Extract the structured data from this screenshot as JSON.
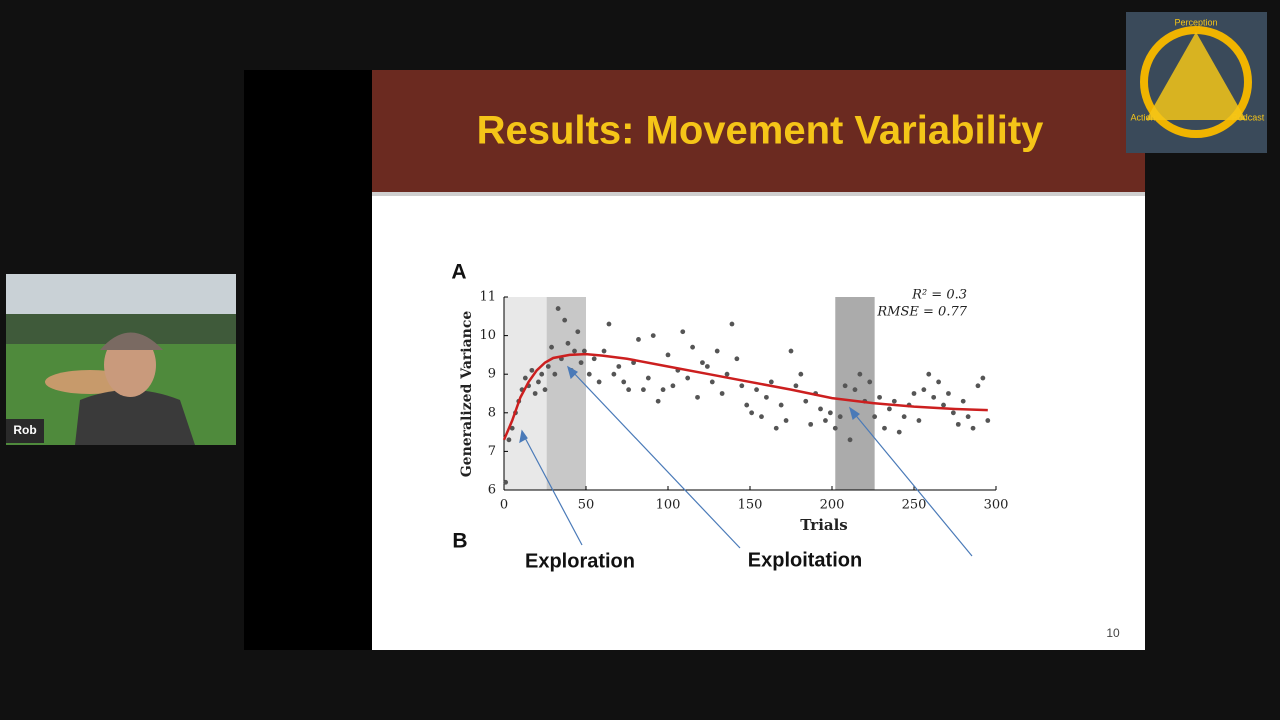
{
  "participant": {
    "name": "Rob"
  },
  "logo": {
    "top": "Perception",
    "left": "Action",
    "right": "Podcast"
  },
  "slide": {
    "title": "Results: Movement Variability",
    "page_number": "10"
  },
  "chart_data": {
    "type": "scatter",
    "xlabel": "Trials",
    "ylabel": "Generalized Variance",
    "annotations": [
      "R² = 0.3",
      "RMSE = 0.77"
    ],
    "labels": {
      "panel_a": "A",
      "panel_b": "B",
      "exploration": "Exploration",
      "exploitation": "Exploitation"
    },
    "xlim": [
      0,
      300
    ],
    "xticks": [
      0,
      50,
      100,
      150,
      200,
      250,
      300
    ],
    "ylim": [
      6,
      11
    ],
    "yticks": [
      6,
      7,
      8,
      9,
      10,
      11
    ],
    "color": "#555555",
    "bands": [
      {
        "x": [
          0,
          26
        ],
        "color": "#e8e8e8"
      },
      {
        "x": [
          26,
          50
        ],
        "color": "#c8c8c8"
      },
      {
        "x": [
          202,
          226
        ],
        "color": "#ababab"
      }
    ],
    "x": [
      1,
      3,
      5,
      7,
      9,
      11,
      13,
      15,
      17,
      19,
      21,
      23,
      25,
      27,
      29,
      31,
      33,
      35,
      37,
      39,
      41,
      43,
      45,
      47,
      49,
      52,
      55,
      58,
      61,
      64,
      67,
      70,
      73,
      76,
      79,
      82,
      85,
      88,
      91,
      94,
      97,
      100,
      103,
      106,
      109,
      112,
      115,
      118,
      121,
      124,
      127,
      130,
      133,
      136,
      139,
      142,
      145,
      148,
      151,
      154,
      157,
      160,
      163,
      166,
      169,
      172,
      175,
      178,
      181,
      184,
      187,
      190,
      193,
      196,
      199,
      202,
      205,
      208,
      211,
      214,
      217,
      220,
      223,
      226,
      229,
      232,
      235,
      238,
      241,
      244,
      247,
      250,
      253,
      256,
      259,
      262,
      265,
      268,
      271,
      274,
      277,
      280,
      283,
      286,
      289,
      292,
      295
    ],
    "values": [
      6.2,
      7.3,
      7.6,
      8.0,
      8.3,
      8.6,
      8.9,
      8.7,
      9.1,
      8.5,
      8.8,
      9.0,
      8.6,
      9.2,
      9.7,
      9.0,
      10.7,
      9.4,
      10.4,
      9.8,
      9.1,
      9.6,
      10.1,
      9.3,
      9.6,
      9.0,
      9.4,
      8.8,
      9.6,
      10.3,
      9.0,
      9.2,
      8.8,
      8.6,
      9.3,
      9.9,
      8.6,
      8.9,
      10.0,
      8.3,
      8.6,
      9.5,
      8.7,
      9.1,
      10.1,
      8.9,
      9.7,
      8.4,
      9.3,
      9.2,
      8.8,
      9.6,
      8.5,
      9.0,
      10.3,
      9.4,
      8.7,
      8.2,
      8.0,
      8.6,
      7.9,
      8.4,
      8.8,
      7.6,
      8.2,
      7.8,
      9.6,
      8.7,
      9.0,
      8.3,
      7.7,
      8.5,
      8.1,
      7.8,
      8.0,
      7.6,
      7.9,
      8.7,
      7.3,
      8.6,
      9.0,
      8.3,
      8.8,
      7.9,
      8.4,
      7.6,
      8.1,
      8.3,
      7.5,
      7.9,
      8.2,
      8.5,
      7.8,
      8.6,
      9.0,
      8.4,
      8.8,
      8.2,
      8.5,
      8.0,
      7.7,
      8.3,
      7.9,
      7.6,
      8.7,
      8.9,
      7.8
    ],
    "fit": {
      "color": "#cc1f1f",
      "x": [
        0,
        5,
        10,
        15,
        20,
        25,
        30,
        40,
        50,
        60,
        75,
        100,
        125,
        150,
        175,
        200,
        225,
        250,
        275,
        295
      ],
      "values": [
        7.3,
        7.8,
        8.4,
        8.8,
        9.1,
        9.3,
        9.42,
        9.5,
        9.52,
        9.48,
        9.4,
        9.2,
        9.0,
        8.8,
        8.6,
        8.38,
        8.25,
        8.16,
        8.1,
        8.07
      ]
    }
  }
}
